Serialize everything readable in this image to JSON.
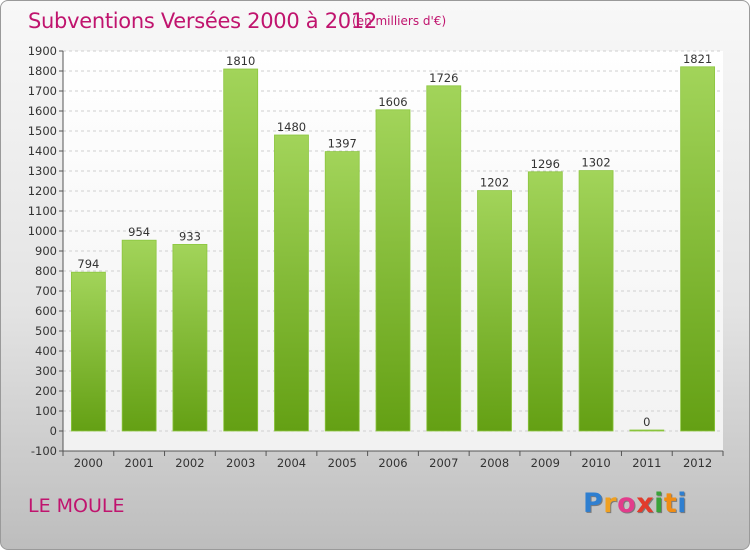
{
  "chart_data": {
    "type": "bar",
    "title": "Subventions Versées 2000 à 2012",
    "subtitle": "(en milliers d'€)",
    "categories": [
      "2000",
      "2001",
      "2002",
      "2003",
      "2004",
      "2005",
      "2006",
      "2007",
      "2008",
      "2009",
      "2010",
      "2011",
      "2012"
    ],
    "values": [
      794,
      954,
      933,
      1810,
      1480,
      1397,
      1606,
      1726,
      1202,
      1296,
      1302,
      0,
      1821
    ],
    "data_labels": [
      "794",
      "954",
      "933",
      "1810",
      "1480",
      "1397",
      "1606",
      "1726",
      "1202",
      "1296",
      "1302",
      "0",
      "1821"
    ],
    "ylim": [
      -100,
      1900
    ],
    "ytick_labels": [
      "-100",
      "0",
      "100",
      "200",
      "300",
      "400",
      "500",
      "600",
      "700",
      "800",
      "900",
      "1000",
      "1100",
      "1200",
      "1300",
      "1400",
      "1500",
      "1600",
      "1700",
      "1800",
      "1900"
    ],
    "grid": true,
    "bar_color_top": "#a2d45a",
    "bar_color_bottom": "#64a014"
  },
  "commune": "LE MOULE",
  "logo": {
    "letters": [
      "P",
      "r",
      "o",
      "x",
      "i",
      "t",
      "i"
    ],
    "colors": [
      "#2f7fd0",
      "#f0a020",
      "#e23c8c",
      "#e23c2c",
      "#3aa23a",
      "#f08c14",
      "#2f7fd0"
    ]
  },
  "colors": {
    "accent": "#c0146e",
    "grid": "#cfcfcf"
  }
}
